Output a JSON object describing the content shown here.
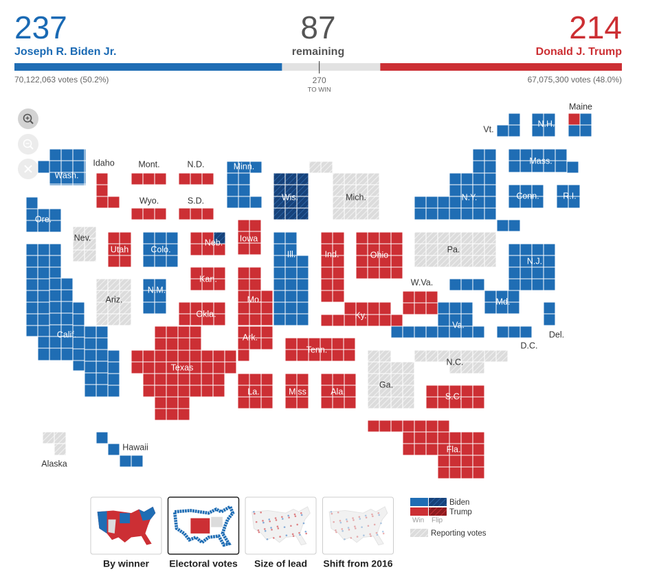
{
  "header": {
    "biden": {
      "electoral_votes": 237,
      "name": "Joseph R. Biden Jr.",
      "popular_votes": "70,122,063 votes (50.2%)"
    },
    "remaining": {
      "electoral_votes": 87,
      "label": "remaining"
    },
    "threshold": {
      "value": 270,
      "label": "TO WIN"
    },
    "trump": {
      "electoral_votes": 214,
      "name": "Donald J. Trump",
      "popular_votes": "67,075,300 votes (48.0%)"
    }
  },
  "map": {
    "states": [
      {
        "label": "Wash.",
        "result": "biden"
      },
      {
        "label": "Ore.",
        "result": "biden"
      },
      {
        "label": "Calif.",
        "result": "biden"
      },
      {
        "label": "Idaho",
        "result": "trump"
      },
      {
        "label": "Nev.",
        "result": "reporting"
      },
      {
        "label": "Utah",
        "result": "trump"
      },
      {
        "label": "Ariz.",
        "result": "reporting"
      },
      {
        "label": "Mont.",
        "result": "trump"
      },
      {
        "label": "Wyo.",
        "result": "trump"
      },
      {
        "label": "Colo.",
        "result": "biden"
      },
      {
        "label": "N.M.",
        "result": "biden"
      },
      {
        "label": "N.D.",
        "result": "trump"
      },
      {
        "label": "S.D.",
        "result": "trump"
      },
      {
        "label": "Neb.",
        "result": "trump",
        "district_result": "biden-flip"
      },
      {
        "label": "Kan.",
        "result": "trump"
      },
      {
        "label": "Okla.",
        "result": "trump"
      },
      {
        "label": "Texas",
        "result": "trump"
      },
      {
        "label": "Minn.",
        "result": "biden"
      },
      {
        "label": "Iowa",
        "result": "trump"
      },
      {
        "label": "Mo.",
        "result": "trump"
      },
      {
        "label": "Ark.",
        "result": "trump"
      },
      {
        "label": "La.",
        "result": "trump"
      },
      {
        "label": "Wis.",
        "result": "biden-flip"
      },
      {
        "label": "Ill.",
        "result": "biden"
      },
      {
        "label": "Mich.",
        "result": "reporting"
      },
      {
        "label": "Ind.",
        "result": "trump"
      },
      {
        "label": "Ohio",
        "result": "trump"
      },
      {
        "label": "Ky.",
        "result": "trump"
      },
      {
        "label": "Tenn.",
        "result": "trump"
      },
      {
        "label": "Miss",
        "result": "trump"
      },
      {
        "label": "Ala.",
        "result": "trump"
      },
      {
        "label": "Ga.",
        "result": "reporting"
      },
      {
        "label": "Fla.",
        "result": "trump"
      },
      {
        "label": "S.C.",
        "result": "trump"
      },
      {
        "label": "N.C.",
        "result": "reporting"
      },
      {
        "label": "Va.",
        "result": "biden"
      },
      {
        "label": "W.Va.",
        "result": "trump"
      },
      {
        "label": "Pa.",
        "result": "reporting"
      },
      {
        "label": "Md.",
        "result": "biden"
      },
      {
        "label": "Del.",
        "result": "biden"
      },
      {
        "label": "D.C.",
        "result": "biden"
      },
      {
        "label": "N.J.",
        "result": "biden"
      },
      {
        "label": "N.Y.",
        "result": "biden"
      },
      {
        "label": "Conn.",
        "result": "biden"
      },
      {
        "label": "R.I.",
        "result": "biden"
      },
      {
        "label": "Mass.",
        "result": "biden"
      },
      {
        "label": "Vt.",
        "result": "biden"
      },
      {
        "label": "N.H.",
        "result": "biden"
      },
      {
        "label": "Maine",
        "result": "biden",
        "district_result": "trump"
      },
      {
        "label": "Alaska",
        "result": "reporting"
      },
      {
        "label": "Hawaii",
        "result": "biden"
      }
    ]
  },
  "legend": {
    "rows": [
      {
        "label": "Biden"
      },
      {
        "label": "Trump"
      }
    ],
    "columns": [
      "Win",
      "Flip"
    ],
    "reporting": "Reporting votes"
  },
  "views": [
    {
      "label": "By winner",
      "selected": false
    },
    {
      "label": "Electoral votes",
      "selected": true
    },
    {
      "label": "Size of lead",
      "selected": false
    },
    {
      "label": "Shift from 2016",
      "selected": false
    }
  ]
}
